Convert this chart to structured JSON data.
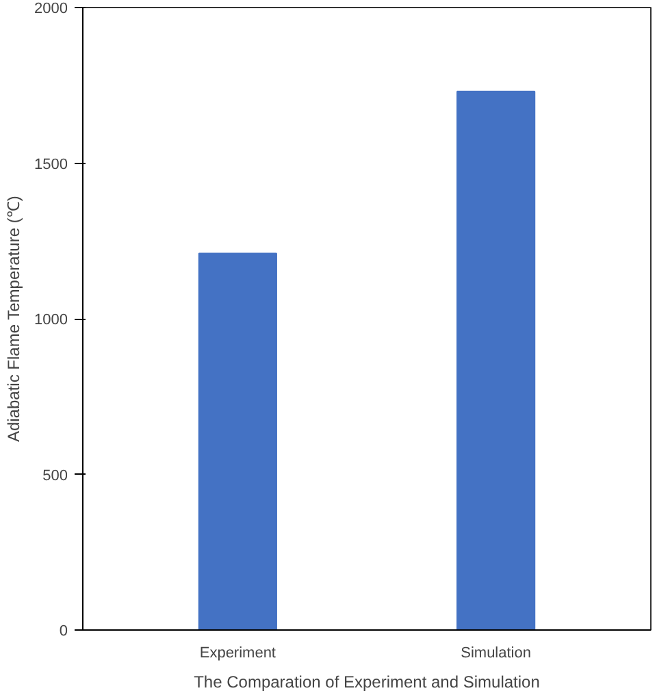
{
  "chart_data": {
    "type": "bar",
    "xlabel": "The Comparation of Experiment and Simulation",
    "ylabel": "Adiabatic Flame Temperature (℃)",
    "categories": [
      "Experiment",
      "Simulation"
    ],
    "values": [
      1210,
      1730
    ],
    "color": "#4472c4",
    "ylim": [
      0,
      2000
    ],
    "yticks": [
      0,
      500,
      1000,
      1500,
      2000
    ],
    "grid": false
  }
}
